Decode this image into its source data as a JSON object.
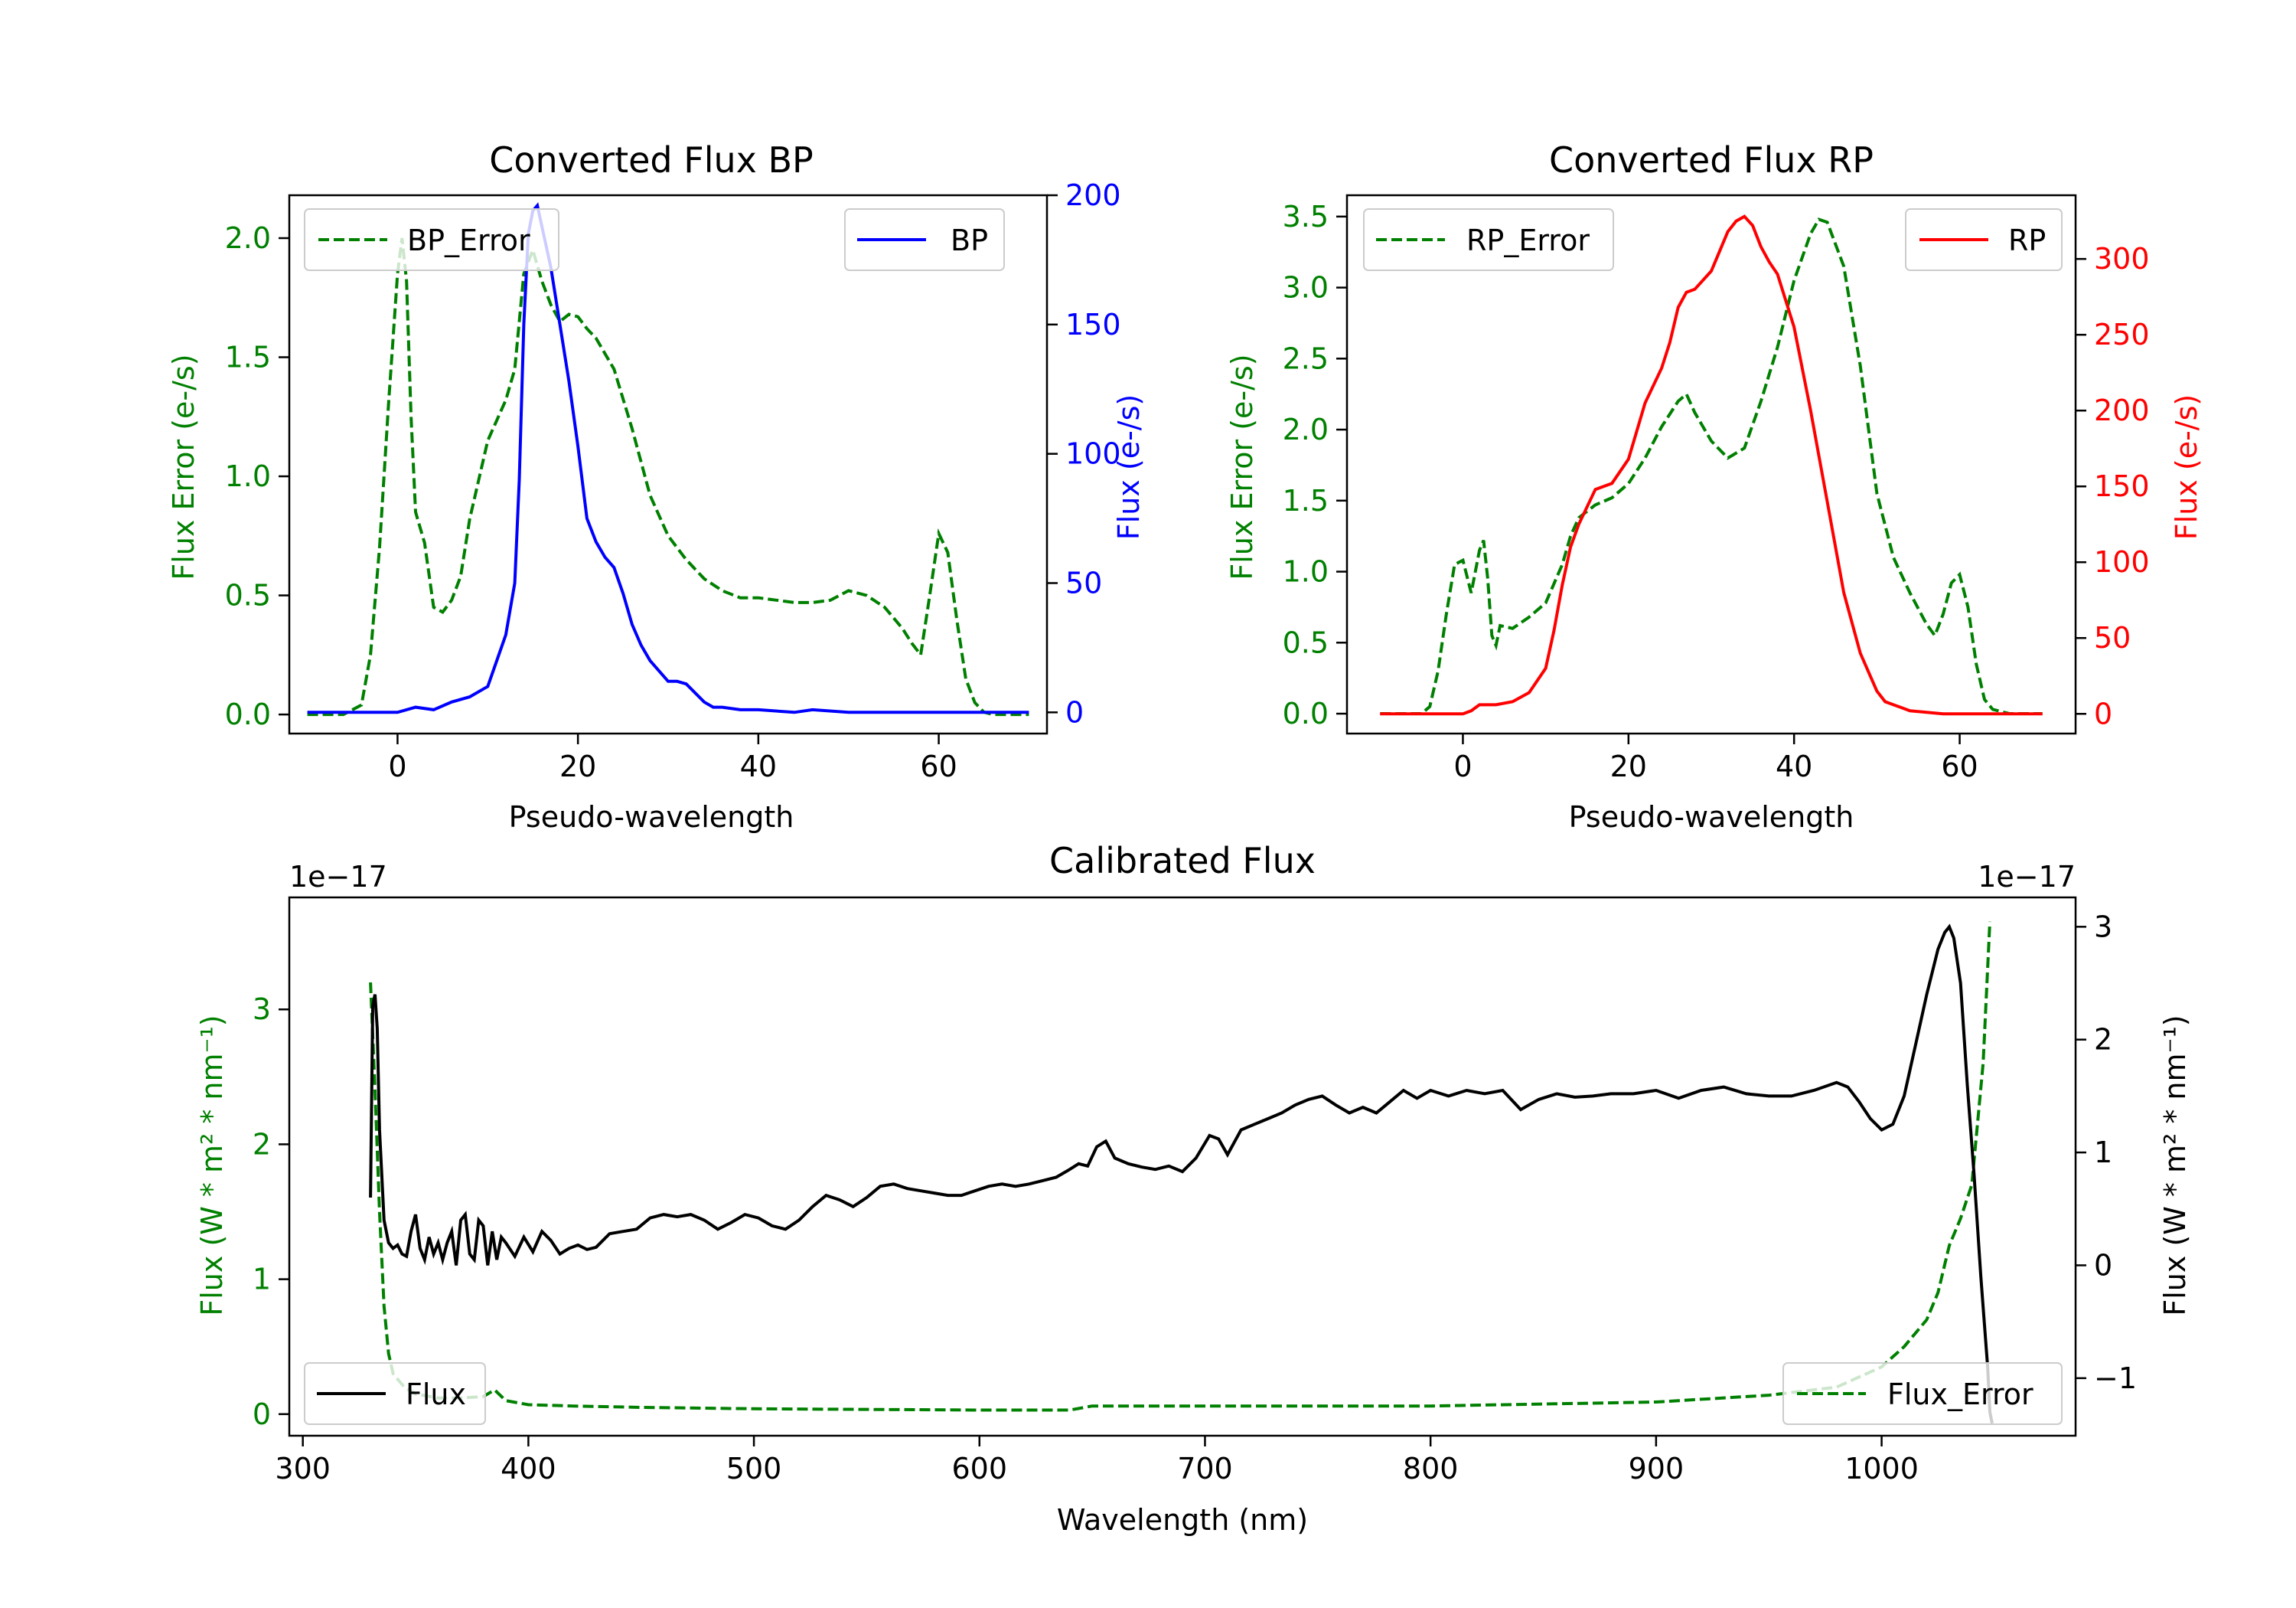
{
  "chart_data": [
    {
      "id": "bp",
      "type": "line",
      "title": "Converted Flux BP",
      "xlabel": "Pseudo-wavelength",
      "ylabel_left": "Flux Error (e-/s)",
      "ylabel_right": "Flux (e-/s)",
      "xlim": [
        -12,
        72
      ],
      "ylim_left": [
        -0.08,
        2.18
      ],
      "ylim_right": [
        -8.2,
        200
      ],
      "xticks": [
        0,
        20,
        40,
        60
      ],
      "yticks_left": [
        0.0,
        0.5,
        1.0,
        1.5,
        2.0
      ],
      "yticks_right": [
        0,
        50,
        100,
        150,
        200
      ],
      "ytick_labels_left": [
        "0.0",
        "0.5",
        "1.0",
        "1.5",
        "2.0"
      ],
      "ytick_labels_right": [
        "0",
        "50",
        "100",
        "150",
        "200"
      ],
      "left_color": "#008000",
      "right_color": "#0000ff",
      "legend_left": "BP_Error",
      "legend_right": "BP",
      "error_series": {
        "name": "BP_Error",
        "x": [
          -10,
          -6,
          -4,
          -3,
          -2,
          -1,
          0,
          0.5,
          1,
          1.5,
          2,
          3,
          4,
          5,
          6,
          7,
          8,
          10,
          12,
          13,
          14,
          15,
          16,
          17,
          18,
          19,
          20,
          21,
          22,
          24,
          26,
          28,
          30,
          32,
          34,
          36,
          38,
          40,
          42,
          44,
          46,
          48,
          50,
          52,
          54,
          56,
          57,
          58,
          59,
          60,
          61,
          62,
          63,
          64,
          65,
          66,
          70
        ],
        "values": [
          0.0,
          0.0,
          0.04,
          0.25,
          0.7,
          1.3,
          1.85,
          2.0,
          1.82,
          1.25,
          0.85,
          0.72,
          0.45,
          0.43,
          0.48,
          0.58,
          0.82,
          1.15,
          1.32,
          1.45,
          1.85,
          1.95,
          1.82,
          1.72,
          1.65,
          1.68,
          1.67,
          1.62,
          1.58,
          1.45,
          1.2,
          0.92,
          0.75,
          0.65,
          0.57,
          0.52,
          0.49,
          0.49,
          0.48,
          0.47,
          0.47,
          0.48,
          0.52,
          0.5,
          0.45,
          0.36,
          0.3,
          0.25,
          0.5,
          0.76,
          0.68,
          0.4,
          0.15,
          0.05,
          0.01,
          0.0,
          0.0
        ]
      },
      "flux_series": {
        "name": "BP",
        "x": [
          -10,
          -4,
          -2,
          0,
          2,
          4,
          6,
          8,
          10,
          11,
          12,
          13,
          13.5,
          14,
          14.5,
          15,
          15.5,
          16,
          17,
          18,
          19,
          20,
          21,
          22,
          23,
          24,
          25,
          26,
          27,
          28,
          30,
          31,
          32,
          34,
          35,
          36,
          38,
          40,
          44,
          46,
          50,
          56,
          60,
          64,
          66,
          70
        ],
        "values": [
          0,
          0,
          0,
          0,
          2,
          1,
          4,
          6,
          10,
          20,
          30,
          50,
          90,
          150,
          185,
          194,
          196,
          188,
          172,
          150,
          128,
          103,
          75,
          66,
          60,
          56,
          46,
          34,
          26,
          20,
          12,
          12,
          11,
          4,
          2,
          2,
          1,
          1,
          0,
          1,
          0,
          0,
          0,
          0,
          0,
          0
        ]
      }
    },
    {
      "id": "rp",
      "type": "line",
      "title": "Converted Flux RP",
      "xlabel": "Pseudo-wavelength",
      "ylabel_left": "Flux Error (e-/s)",
      "ylabel_right": "Flux (e-/s)",
      "xlim": [
        -14,
        74
      ],
      "ylim_left": [
        -0.14,
        3.65
      ],
      "ylim_right": [
        -13,
        342
      ],
      "xticks": [
        0,
        20,
        40,
        60
      ],
      "yticks_left": [
        0.0,
        0.5,
        1.0,
        1.5,
        2.0,
        2.5,
        3.0,
        3.5
      ],
      "yticks_right": [
        0,
        50,
        100,
        150,
        200,
        250,
        300
      ],
      "ytick_labels_left": [
        "0.0",
        "0.5",
        "1.0",
        "1.5",
        "2.0",
        "2.5",
        "3.0",
        "3.5"
      ],
      "ytick_labels_right": [
        "0",
        "50",
        "100",
        "150",
        "200",
        "250",
        "300"
      ],
      "left_color": "#008000",
      "right_color": "#ff0000",
      "legend_left": "RP_Error",
      "legend_right": "RP",
      "error_series": {
        "name": "RP_Error",
        "x": [
          -10,
          -5,
          -4,
          -3,
          -2,
          -1,
          0,
          1,
          2,
          2.5,
          3,
          3.5,
          4,
          4.5,
          6,
          8,
          10,
          12,
          13,
          14,
          16,
          18,
          20,
          22,
          24,
          26,
          27,
          28,
          30,
          32,
          34,
          36,
          38,
          40,
          42,
          43,
          44,
          46,
          48,
          50,
          52,
          54,
          56,
          57,
          58,
          59,
          60,
          61,
          62,
          63,
          64,
          66,
          70
        ],
        "values": [
          0.0,
          0.0,
          0.05,
          0.3,
          0.7,
          1.05,
          1.08,
          0.85,
          1.15,
          1.22,
          0.95,
          0.55,
          0.48,
          0.62,
          0.6,
          0.68,
          0.78,
          1.05,
          1.25,
          1.38,
          1.47,
          1.52,
          1.62,
          1.8,
          2.02,
          2.2,
          2.25,
          2.12,
          1.92,
          1.8,
          1.87,
          2.2,
          2.58,
          3.05,
          3.38,
          3.48,
          3.46,
          3.15,
          2.45,
          1.55,
          1.1,
          0.85,
          0.63,
          0.55,
          0.7,
          0.92,
          0.98,
          0.75,
          0.35,
          0.1,
          0.03,
          0.0,
          0.0
        ]
      },
      "flux_series": {
        "name": "RP",
        "x": [
          -10,
          -2,
          0,
          1,
          2,
          4,
          6,
          8,
          10,
          11,
          12,
          13,
          14,
          16,
          18,
          20,
          22,
          24,
          25,
          26,
          27,
          28,
          30,
          31,
          32,
          33,
          34,
          35,
          36,
          37,
          38,
          40,
          42,
          44,
          46,
          48,
          50,
          51,
          52,
          53,
          54,
          56,
          58,
          60,
          62,
          66,
          70
        ],
        "values": [
          0,
          0,
          0,
          2,
          6,
          6,
          8,
          14,
          30,
          55,
          85,
          110,
          125,
          148,
          152,
          168,
          205,
          228,
          245,
          268,
          278,
          280,
          292,
          305,
          318,
          325,
          328,
          322,
          308,
          298,
          290,
          255,
          200,
          140,
          80,
          40,
          15,
          8,
          6,
          4,
          2,
          1,
          0,
          0,
          0,
          0,
          0
        ]
      }
    },
    {
      "id": "calib",
      "type": "line",
      "title": "Calibrated Flux",
      "xlabel": "Wavelength (nm)",
      "ylabel_left": "Flux (W * m² * nm⁻¹)",
      "ylabel_right": "Flux (W * m² * nm⁻¹)",
      "offset_left": "1e−17",
      "offset_right": "1e−17",
      "xlim": [
        294,
        1086
      ],
      "ylim_left": [
        -0.16,
        3.83
      ],
      "ylim_right": [
        -1.51,
        3.26
      ],
      "xticks": [
        300,
        400,
        500,
        600,
        700,
        800,
        900,
        1000
      ],
      "yticks_left": [
        0,
        1,
        2,
        3
      ],
      "yticks_right": [
        -1,
        0,
        1,
        2,
        3
      ],
      "ytick_labels_left": [
        "0",
        "1",
        "2",
        "3"
      ],
      "ytick_labels_right": [
        "−1",
        "0",
        "1",
        "2",
        "3"
      ],
      "left_color": "#008000",
      "right_color": "#000000",
      "legend_left": "Flux",
      "legend_right": "Flux_Error",
      "legend_left_color": "#000000",
      "legend_left_dashed": false,
      "legend_right_color": "#008000",
      "legend_right_dashed": true,
      "error_series": {
        "name": "Flux_Error",
        "x": [
          330,
          332,
          334,
          336,
          338,
          340,
          345,
          350,
          360,
          370,
          380,
          385,
          390,
          400,
          420,
          450,
          500,
          600,
          640,
          650,
          700,
          800,
          900,
          950,
          980,
          1000,
          1010,
          1020,
          1025,
          1030,
          1035,
          1040,
          1045,
          1048
        ],
        "values": [
          3.2,
          2.4,
          1.5,
          0.8,
          0.45,
          0.3,
          0.2,
          0.15,
          0.12,
          0.12,
          0.13,
          0.18,
          0.1,
          0.07,
          0.06,
          0.05,
          0.04,
          0.03,
          0.03,
          0.06,
          0.06,
          0.06,
          0.09,
          0.14,
          0.2,
          0.35,
          0.5,
          0.7,
          0.9,
          1.25,
          1.45,
          1.7,
          2.6,
          3.65
        ]
      },
      "flux_series": {
        "name": "Flux",
        "x": [
          330,
          331,
          332,
          333,
          334,
          336,
          338,
          340,
          342,
          344,
          346,
          348,
          350,
          352,
          354,
          356,
          358,
          360,
          362,
          364,
          366,
          368,
          370,
          372,
          374,
          376,
          378,
          380,
          382,
          384,
          386,
          388,
          390,
          394,
          398,
          402,
          406,
          410,
          414,
          418,
          422,
          426,
          430,
          436,
          442,
          448,
          454,
          460,
          466,
          472,
          478,
          484,
          490,
          496,
          502,
          508,
          514,
          520,
          526,
          532,
          538,
          544,
          550,
          556,
          562,
          568,
          574,
          580,
          586,
          592,
          598,
          604,
          610,
          616,
          622,
          628,
          634,
          640,
          644,
          648,
          652,
          656,
          660,
          666,
          672,
          678,
          684,
          690,
          696,
          702,
          706,
          710,
          716,
          722,
          728,
          734,
          740,
          746,
          752,
          758,
          764,
          770,
          776,
          782,
          788,
          794,
          800,
          808,
          816,
          824,
          832,
          840,
          848,
          856,
          864,
          872,
          880,
          890,
          900,
          910,
          920,
          930,
          940,
          950,
          960,
          970,
          980,
          985,
          990,
          995,
          1000,
          1005,
          1010,
          1015,
          1020,
          1025,
          1028,
          1030,
          1032,
          1035,
          1038,
          1041,
          1044,
          1047,
          1048,
          1049
        ],
        "values": [
          0.6,
          2.3,
          2.4,
          2.1,
          1.2,
          0.4,
          0.2,
          0.15,
          0.18,
          0.1,
          0.08,
          0.3,
          0.45,
          0.15,
          0.05,
          0.25,
          0.1,
          0.2,
          0.05,
          0.2,
          0.3,
          0.0,
          0.4,
          0.45,
          0.1,
          0.05,
          0.4,
          0.35,
          0.0,
          0.3,
          0.05,
          0.25,
          0.2,
          0.08,
          0.25,
          0.12,
          0.3,
          0.22,
          0.1,
          0.15,
          0.18,
          0.14,
          0.16,
          0.28,
          0.3,
          0.32,
          0.42,
          0.45,
          0.43,
          0.45,
          0.4,
          0.32,
          0.38,
          0.45,
          0.42,
          0.35,
          0.32,
          0.4,
          0.52,
          0.62,
          0.58,
          0.52,
          0.6,
          0.7,
          0.72,
          0.68,
          0.66,
          0.64,
          0.62,
          0.62,
          0.66,
          0.7,
          0.72,
          0.7,
          0.72,
          0.75,
          0.78,
          0.85,
          0.9,
          0.88,
          1.05,
          1.1,
          0.95,
          0.9,
          0.87,
          0.85,
          0.88,
          0.83,
          0.95,
          1.15,
          1.12,
          0.98,
          1.2,
          1.25,
          1.3,
          1.35,
          1.42,
          1.47,
          1.5,
          1.42,
          1.35,
          1.4,
          1.35,
          1.45,
          1.55,
          1.48,
          1.55,
          1.5,
          1.55,
          1.52,
          1.55,
          1.38,
          1.47,
          1.52,
          1.49,
          1.5,
          1.52,
          1.52,
          1.55,
          1.48,
          1.55,
          1.58,
          1.52,
          1.5,
          1.5,
          1.55,
          1.62,
          1.58,
          1.45,
          1.3,
          1.2,
          1.25,
          1.5,
          1.95,
          2.4,
          2.8,
          2.95,
          3.0,
          2.9,
          2.5,
          1.6,
          0.8,
          -0.1,
          -0.9,
          -1.3,
          -1.4
        ]
      }
    }
  ]
}
